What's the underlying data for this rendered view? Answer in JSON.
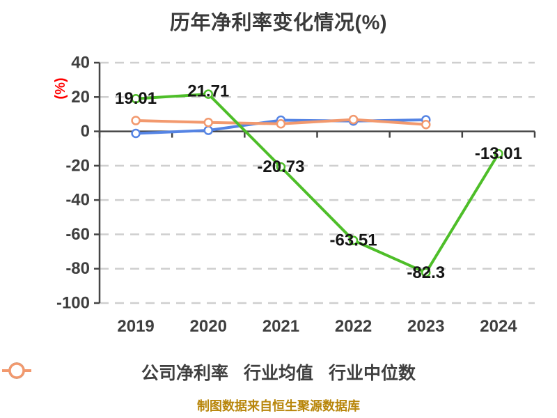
{
  "title": "历年净利率变化情况(%)",
  "y_axis_name": "(%)",
  "footer": "制图数据来自恒生聚源数据库",
  "colors": {
    "company_series": "#4ebe29",
    "industry_mean_series": "#5584e4",
    "industry_median_series": "#f2996e",
    "axis": "#454545",
    "grid": "#cfcfcf",
    "tick_label": "#3f3f3f",
    "data_label": "#151515",
    "title_text": "#3a3a3a",
    "y_axis_name_text": "#ff0000",
    "footer_text": "#b8860b",
    "marker_fill": "#ffffff"
  },
  "chart_data": {
    "type": "line",
    "x": [
      "2019",
      "2020",
      "2021",
      "2022",
      "2023",
      "2024"
    ],
    "series": [
      {
        "key": "company-net-margin",
        "name": "公司净利率",
        "color": "#4ebe29",
        "values": [
          19.01,
          21.71,
          -20.73,
          -63.51,
          -82.3,
          -13.01
        ],
        "labels": [
          "19.01",
          "21.71",
          "-20.73",
          "-63.51",
          "-82.3",
          "-13.01"
        ]
      },
      {
        "key": "industry-mean",
        "name": "行业均值",
        "color": "#5584e4",
        "values": [
          -1.2,
          0.6,
          6.5,
          6.0,
          6.7
        ]
      },
      {
        "key": "industry-median",
        "name": "行业中位数",
        "color": "#f2996e",
        "values": [
          6.3,
          5.2,
          4.4,
          6.9,
          4.0
        ]
      }
    ],
    "ylim": [
      -100,
      40
    ],
    "y_ticks": [
      40,
      20,
      0,
      -20,
      -40,
      -60,
      -80,
      -100
    ],
    "grid": "horizontal dashed gridlines, solid dark zero axis",
    "legend_position": "bottom"
  }
}
